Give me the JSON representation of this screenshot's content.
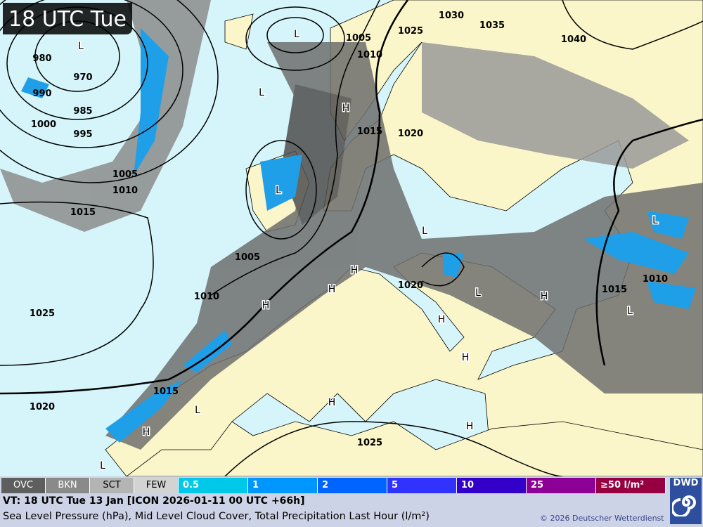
{
  "title": "18 UTC Tue",
  "colors": {
    "sea": "#d6f5fa",
    "land": "#faf6c9",
    "cloud_dark": "#5a5a5a",
    "cloud_mid": "#8c8c8c",
    "cloud_light": "#c9c9c9",
    "precip": "#1f9fe8"
  },
  "isobar_labels": [
    "980",
    "970",
    "990",
    "985",
    "1000",
    "995",
    "1005",
    "1010",
    "1015",
    "1025",
    "1020",
    "1015",
    "1010",
    "1005",
    "1005",
    "1010",
    "1025",
    "1030",
    "1035",
    "1040",
    "1015",
    "1020",
    "1020",
    "1015",
    "1010",
    "1025"
  ],
  "pressure_centers": {
    "high": "H",
    "low": "L",
    "highs_count_drawn": 10,
    "lows_count_drawn": 10
  },
  "legend": {
    "cloud": [
      {
        "label": "OVC",
        "color": "#5e5e5e",
        "text": "#fff"
      },
      {
        "label": "BKN",
        "color": "#8a8a8a",
        "text": "#fff"
      },
      {
        "label": "SCT",
        "color": "#b4b4b4",
        "text": "#000"
      },
      {
        "label": "FEW",
        "color": "#d3d3d3",
        "text": "#000"
      }
    ],
    "precip": [
      {
        "label": "0.5",
        "color": "#00c8e8"
      },
      {
        "label": "1",
        "color": "#0096ff"
      },
      {
        "label": "2",
        "color": "#0064ff"
      },
      {
        "label": "5",
        "color": "#3232ff"
      },
      {
        "label": "10",
        "color": "#3200c8"
      },
      {
        "label": "25",
        "color": "#8c0096"
      },
      {
        "label": "≥50 l/m²",
        "color": "#960040"
      }
    ]
  },
  "footer": {
    "valid_time": "VT: 18 UTC Tue  13 Jan [ICON 2026-01-11 00 UTC +66h]",
    "description": "Sea Level Pressure (hPa), Mid Level Cloud Cover, Total Precipitation Last Hour (l/m²)",
    "copyright": "© 2026 Deutscher Wetterdienst",
    "logo": "DWD"
  }
}
